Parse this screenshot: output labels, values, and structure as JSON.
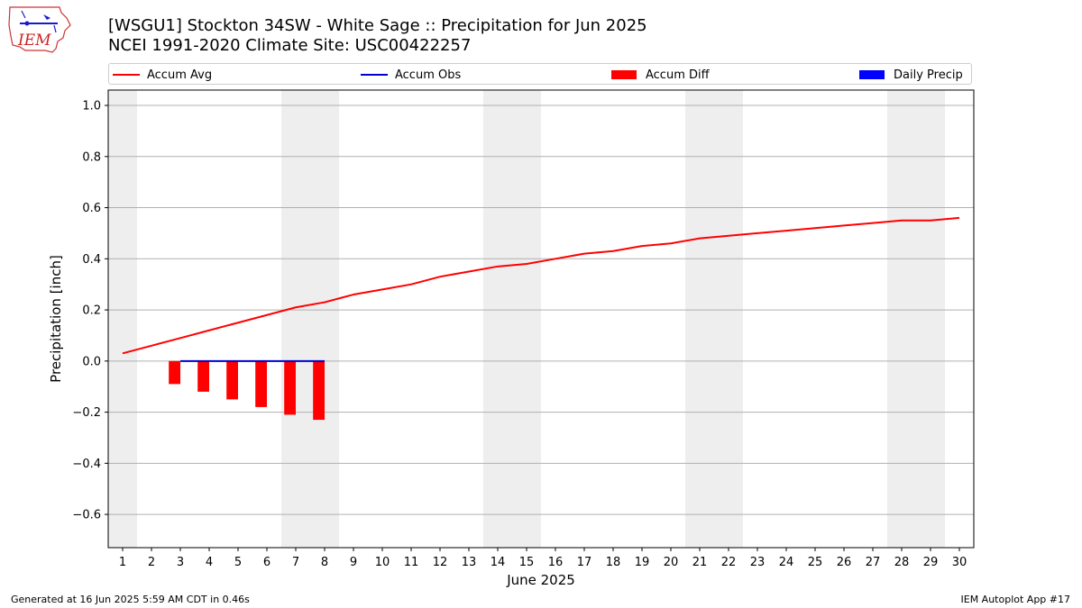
{
  "header": {
    "title_line1": "[WSGU1] Stockton 34SW - White Sage :: Precipitation for Jun 2025",
    "title_line2": "NCEI 1991-2020 Climate Site: USC00422257"
  },
  "logo": {
    "text": "IEM"
  },
  "footer": {
    "generated": "Generated at 16 Jun 2025 5:59 AM CDT in 0.46s",
    "app": "IEM Autoplot App #17"
  },
  "colors": {
    "avg": "#ff0000",
    "obs": "#0000cc",
    "diff": "#ff0000",
    "daily": "#0000ff",
    "weekend": "#eeeeee",
    "grid": "#b0b0b0"
  },
  "chart_data": {
    "type": "line",
    "title": "[WSGU1] Stockton 34SW - White Sage :: Precipitation for Jun 2025",
    "subtitle": "NCEI 1991-2020 Climate Site: USC00422257",
    "xlabel": "June 2025",
    "ylabel": "Precipitation [inch]",
    "xlim": [
      0.5,
      30.5
    ],
    "ylim": [
      -0.73,
      1.06
    ],
    "yticks": [
      -0.6,
      -0.4,
      -0.2,
      0.0,
      0.2,
      0.4,
      0.6,
      0.8,
      1.0
    ],
    "ytick_labels": [
      "−0.6",
      "−0.4",
      "−0.2",
      "0.0",
      "0.2",
      "0.4",
      "0.6",
      "0.8",
      "1.0"
    ],
    "x": [
      1,
      2,
      3,
      4,
      5,
      6,
      7,
      8,
      9,
      10,
      11,
      12,
      13,
      14,
      15,
      16,
      17,
      18,
      19,
      20,
      21,
      22,
      23,
      24,
      25,
      26,
      27,
      28,
      29,
      30
    ],
    "xtick_labels": [
      "1",
      "2",
      "3",
      "4",
      "5",
      "6",
      "7",
      "8",
      "9",
      "10",
      "11",
      "12",
      "13",
      "14",
      "15",
      "16",
      "17",
      "18",
      "19",
      "20",
      "21",
      "22",
      "23",
      "24",
      "25",
      "26",
      "27",
      "28",
      "29",
      "30"
    ],
    "grid": "horizontal",
    "legend_position": "top",
    "weekend_days": [
      1,
      7,
      8,
      14,
      15,
      21,
      22,
      28,
      29
    ],
    "series": [
      {
        "name": "Accum Avg",
        "kind": "line",
        "x": [
          1,
          2,
          3,
          4,
          5,
          6,
          7,
          8,
          9,
          10,
          11,
          12,
          13,
          14,
          15,
          16,
          17,
          18,
          19,
          20,
          21,
          22,
          23,
          24,
          25,
          26,
          27,
          28,
          29,
          30
        ],
        "values": [
          0.03,
          0.06,
          0.09,
          0.12,
          0.15,
          0.18,
          0.21,
          0.23,
          0.26,
          0.28,
          0.3,
          0.33,
          0.35,
          0.37,
          0.38,
          0.4,
          0.42,
          0.43,
          0.45,
          0.46,
          0.48,
          0.49,
          0.5,
          0.51,
          0.52,
          0.53,
          0.54,
          0.55,
          0.55,
          0.56
        ]
      },
      {
        "name": "Accum Obs",
        "kind": "line",
        "x": [
          3,
          4,
          5,
          6,
          7,
          8
        ],
        "values": [
          0.0,
          0.0,
          0.0,
          0.0,
          0.0,
          0.0
        ]
      },
      {
        "name": "Accum Diff",
        "kind": "bar",
        "x": [
          3,
          4,
          5,
          6,
          7,
          8
        ],
        "values": [
          -0.09,
          -0.12,
          -0.15,
          -0.18,
          -0.21,
          -0.23
        ]
      },
      {
        "name": "Daily Precip",
        "kind": "bar",
        "x": [],
        "values": []
      }
    ]
  }
}
